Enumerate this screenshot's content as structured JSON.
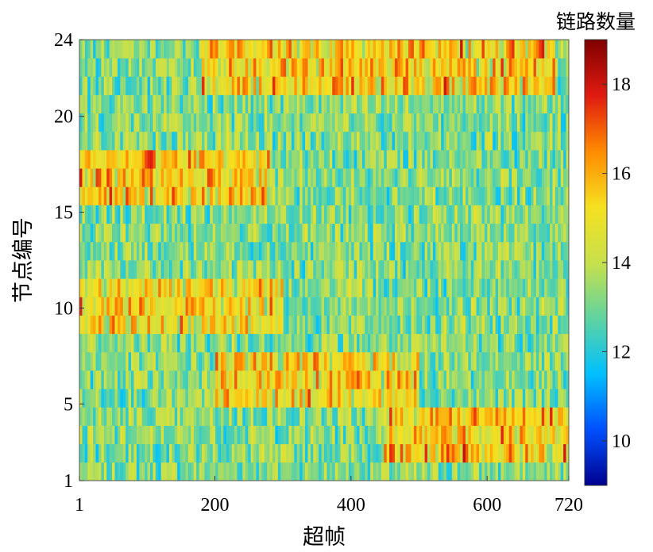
{
  "chart_data": {
    "type": "heatmap",
    "title": "",
    "xlabel": "超帧",
    "ylabel": "节点编号",
    "colorbar_label": "链路数量",
    "colormap": "jet",
    "colors": [
      "#00008f",
      "#0050ff",
      "#00c0ff",
      "#5fd3a0",
      "#c8e04a",
      "#f5e020",
      "#ff8a00",
      "#e01b10",
      "#7f0000"
    ],
    "xlim": [
      1,
      720
    ],
    "ylim": [
      1,
      24
    ],
    "x_ticks": [
      1,
      200,
      400,
      600,
      720
    ],
    "y_ticks": [
      1,
      5,
      10,
      15,
      20,
      24
    ],
    "x_tick_labels": [
      "1",
      "200",
      "400",
      "600",
      "720"
    ],
    "y_tick_labels": [
      "1",
      "5",
      "10",
      "15",
      "20",
      "24"
    ],
    "colorbar_range": [
      9,
      19
    ],
    "colorbar_ticks": [
      10,
      12,
      14,
      16,
      18
    ],
    "colorbar_tick_labels": [
      "10",
      "12",
      "14",
      "16",
      "18"
    ],
    "value_range": [
      9,
      19
    ],
    "baseline_value": 13.2,
    "high_bands": [
      {
        "node_from": 22,
        "node_to": 24,
        "superframe_from": 180,
        "superframe_to": 700,
        "level": 15.6
      },
      {
        "node_from": 16,
        "node_to": 18,
        "superframe_from": 1,
        "superframe_to": 280,
        "level": 15.8
      },
      {
        "node_from": 9,
        "node_to": 11,
        "superframe_from": 1,
        "superframe_to": 300,
        "level": 15.3
      },
      {
        "node_from": 5,
        "node_to": 7,
        "superframe_from": 200,
        "superframe_to": 500,
        "level": 15.4
      },
      {
        "node_from": 2,
        "node_to": 4,
        "superframe_from": 450,
        "superframe_to": 720,
        "level": 15.8
      }
    ]
  }
}
